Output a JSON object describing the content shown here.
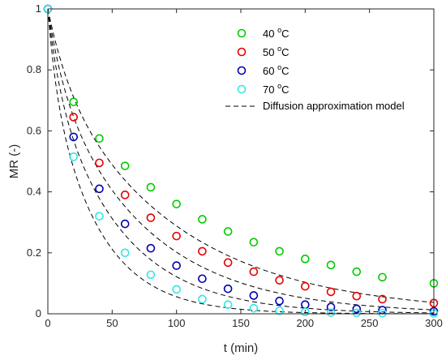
{
  "chart_data": {
    "type": "scatter",
    "xlabel": "t (min)",
    "ylabel": "MR (-)",
    "xlim": [
      0,
      300
    ],
    "ylim": [
      0,
      1
    ],
    "x_ticks": [
      "0",
      "50",
      "100",
      "150",
      "200",
      "250",
      "300"
    ],
    "y_ticks": [
      "0",
      "0.2",
      "0.4",
      "0.6",
      "0.8",
      "1"
    ],
    "grid": false,
    "legend_position": "top-right",
    "x": [
      0,
      20,
      40,
      60,
      80,
      100,
      120,
      140,
      160,
      180,
      200,
      220,
      240,
      260,
      300
    ],
    "series": [
      {
        "name": "40 °C",
        "label_main": "40 ",
        "label_sup": "o",
        "label_unit": "C",
        "color": "#00cc00",
        "values": [
          1.0,
          0.695,
          0.575,
          0.485,
          0.415,
          0.36,
          0.31,
          0.27,
          0.235,
          0.205,
          0.18,
          0.16,
          0.138,
          0.12,
          0.1
        ]
      },
      {
        "name": "50 °C",
        "label_main": "50 ",
        "label_sup": "o",
        "label_unit": "C",
        "color": "#e60000",
        "values": [
          1.0,
          0.645,
          0.495,
          0.39,
          0.315,
          0.255,
          0.205,
          0.168,
          0.138,
          0.11,
          0.09,
          0.072,
          0.058,
          0.048,
          0.035
        ]
      },
      {
        "name": "60 °C",
        "label_main": "60 ",
        "label_sup": "o",
        "label_unit": "C",
        "color": "#0000b3",
        "values": [
          1.0,
          0.58,
          0.41,
          0.295,
          0.215,
          0.158,
          0.115,
          0.082,
          0.06,
          0.042,
          0.03,
          0.022,
          0.016,
          0.012,
          0.008
        ]
      },
      {
        "name": "70 °C",
        "label_main": "70 ",
        "label_sup": "o",
        "label_unit": "C",
        "color": "#33e6e6",
        "values": [
          1.0,
          0.515,
          0.32,
          0.2,
          0.128,
          0.08,
          0.048,
          0.03,
          0.018,
          0.01,
          0.006,
          0.004,
          0.003,
          0.002,
          0.001
        ]
      }
    ],
    "model_line": {
      "name": "Diffusion approximation model",
      "style": "dashed",
      "color": "#000000"
    }
  }
}
